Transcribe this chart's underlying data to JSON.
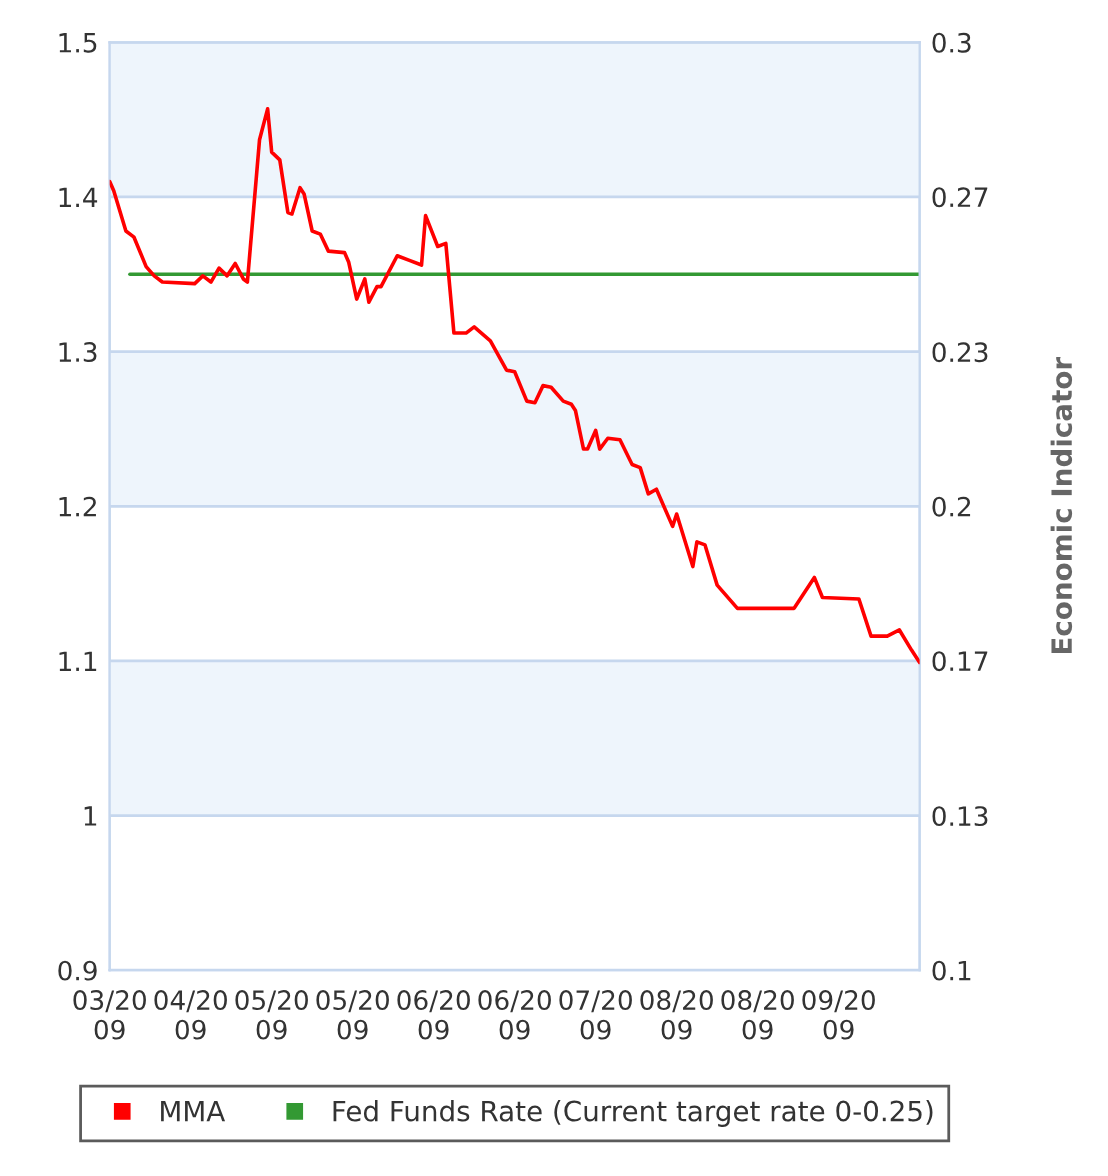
{
  "chart_data": {
    "type": "line",
    "y2label": "Economic Indicator",
    "series": [
      {
        "name": "MMA",
        "color": "#ff0000",
        "x": [
          "2009-03-22",
          "2009-03-23",
          "2009-03-26",
          "2009-03-28",
          "2009-03-31",
          "2009-04-02",
          "2009-04-04",
          "2009-04-12",
          "2009-04-14",
          "2009-04-16",
          "2009-04-18",
          "2009-04-20",
          "2009-04-22",
          "2009-04-24",
          "2009-04-25",
          "2009-04-28",
          "2009-04-30",
          "2009-05-01",
          "2009-05-03",
          "2009-05-05",
          "2009-05-06",
          "2009-05-08",
          "2009-05-09",
          "2009-05-11",
          "2009-05-13",
          "2009-05-15",
          "2009-05-19",
          "2009-05-20",
          "2009-05-22",
          "2009-05-24",
          "2009-05-25",
          "2009-05-27",
          "2009-05-28",
          "2009-06-01",
          "2009-06-04",
          "2009-06-07",
          "2009-06-08",
          "2009-06-11",
          "2009-06-13",
          "2009-06-15",
          "2009-06-18",
          "2009-06-20",
          "2009-06-24",
          "2009-06-28",
          "2009-06-30",
          "2009-07-03",
          "2009-07-05",
          "2009-07-07",
          "2009-07-09",
          "2009-07-12",
          "2009-07-14",
          "2009-07-15",
          "2009-07-17",
          "2009-07-18",
          "2009-07-20",
          "2009-07-21",
          "2009-07-23",
          "2009-07-26",
          "2009-07-29",
          "2009-07-31",
          "2009-08-02",
          "2009-08-04",
          "2009-08-08",
          "2009-08-09",
          "2009-08-13",
          "2009-08-14",
          "2009-08-16",
          "2009-08-19",
          "2009-08-24",
          "2009-09-07",
          "2009-09-12",
          "2009-09-14",
          "2009-09-23",
          "2009-09-26",
          "2009-09-30",
          "2009-10-03",
          "2009-10-06",
          "2009-10-08"
        ],
        "values": [
          1.41,
          1.404,
          1.378,
          1.374,
          1.355,
          1.349,
          1.345,
          1.344,
          1.349,
          1.345,
          1.354,
          1.349,
          1.357,
          1.347,
          1.345,
          1.437,
          1.457,
          1.429,
          1.424,
          1.39,
          1.389,
          1.406,
          1.402,
          1.378,
          1.376,
          1.365,
          1.364,
          1.358,
          1.334,
          1.347,
          1.332,
          1.342,
          1.342,
          1.362,
          1.359,
          1.356,
          1.388,
          1.368,
          1.37,
          1.312,
          1.312,
          1.316,
          1.307,
          1.288,
          1.287,
          1.268,
          1.267,
          1.278,
          1.277,
          1.268,
          1.266,
          1.262,
          1.237,
          1.237,
          1.249,
          1.237,
          1.244,
          1.243,
          1.227,
          1.225,
          1.208,
          1.211,
          1.187,
          1.195,
          1.161,
          1.177,
          1.175,
          1.149,
          1.134,
          1.134,
          1.154,
          1.141,
          1.14,
          1.116,
          1.116,
          1.12,
          1.107,
          1.099
        ]
      },
      {
        "name": "Fed Funds Rate (Current target rate 0-0.25)",
        "color": "#339933",
        "axis": "y2",
        "x": [
          "2009-03-27",
          "2009-10-08"
        ],
        "values": [
          0.25,
          0.25
        ]
      }
    ],
    "xlim": [
      "2009-03-22",
      "2009-10-08"
    ],
    "xticks": [
      {
        "value": "2009-03-22",
        "label": "03/20\n09"
      },
      {
        "value": "2009-04-11",
        "label": "04/20\n09"
      },
      {
        "value": "2009-05-01",
        "label": "05/20\n09"
      },
      {
        "value": "2009-05-21",
        "label": "05/20\n09"
      },
      {
        "value": "2009-06-10",
        "label": "06/20\n09"
      },
      {
        "value": "2009-06-30",
        "label": "06/20\n09"
      },
      {
        "value": "2009-07-20",
        "label": "07/20\n09"
      },
      {
        "value": "2009-08-09",
        "label": "08/20\n09"
      },
      {
        "value": "2009-08-29",
        "label": "08/20\n09"
      },
      {
        "value": "2009-09-18",
        "label": "09/20\n09"
      }
    ],
    "ylim": [
      0.9,
      1.5
    ],
    "yticks": [
      0.9,
      {
        "value": 1.0,
        "label": "1"
      },
      1.1,
      1.2,
      1.3,
      1.4,
      1.5
    ],
    "y2lim": [
      0.1,
      0.3
    ],
    "y2ticks": [
      0.1,
      {
        "value": 0.1333,
        "label": "0.13"
      },
      {
        "value": 0.1667,
        "label": "0.17"
      },
      0.2,
      {
        "value": 0.2333,
        "label": "0.23"
      },
      {
        "value": 0.2667,
        "label": "0.27"
      },
      0.3
    ],
    "bands": [
      {
        "axis": "y",
        "from": 1.0,
        "to": 1.1,
        "color": "#eef5fc"
      },
      {
        "axis": "y",
        "from": 1.2,
        "to": 1.3,
        "color": "#eef5fc"
      },
      {
        "axis": "y",
        "from": 1.4,
        "to": 1.5,
        "color": "#eef5fc"
      }
    ],
    "grid": "y",
    "legend": "bottom",
    "marker": "none",
    "line_style": "solid"
  }
}
